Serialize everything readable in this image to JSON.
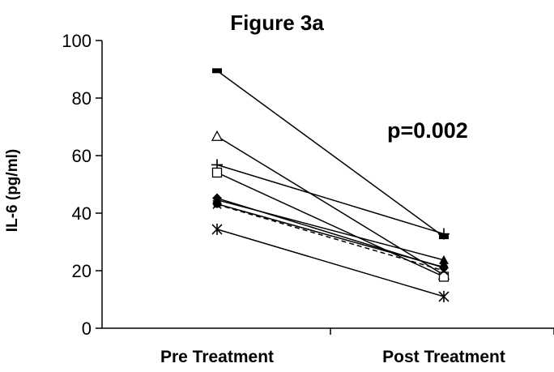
{
  "chart_data": {
    "type": "line",
    "title": "Figure 3a",
    "ylabel": "IL-6 (pg/ml)",
    "xlabel": "",
    "categories": [
      "Pre Treatment",
      "Post Treatment"
    ],
    "ylim": [
      0,
      100
    ],
    "yticks": [
      0,
      20,
      40,
      60,
      80,
      100
    ],
    "annotation": "p=0.002",
    "grid": false,
    "legend": "none",
    "series": [
      {
        "marker": "filled-square",
        "style": "solid",
        "values": [
          89.5,
          31.8
        ]
      },
      {
        "marker": "plus",
        "style": "solid",
        "values": [
          56.8,
          32.8
        ]
      },
      {
        "marker": "open-triangle",
        "style": "solid",
        "values": [
          66.7,
          18.5
        ]
      },
      {
        "marker": "open-square",
        "style": "solid",
        "values": [
          54.1,
          17.9
        ]
      },
      {
        "marker": "filled-diamond",
        "style": "solid",
        "values": [
          45.2,
          21.0
        ]
      },
      {
        "marker": "filled-triangle",
        "style": "solid",
        "values": [
          44.6,
          23.7
        ]
      },
      {
        "marker": "filled-circle",
        "style": "solid",
        "values": [
          43.2,
          21.2
        ]
      },
      {
        "marker": "x",
        "style": "dashed",
        "values": [
          43.0,
          20.0
        ]
      },
      {
        "marker": "asterisk",
        "style": "solid",
        "values": [
          34.4,
          11.0
        ]
      }
    ]
  }
}
